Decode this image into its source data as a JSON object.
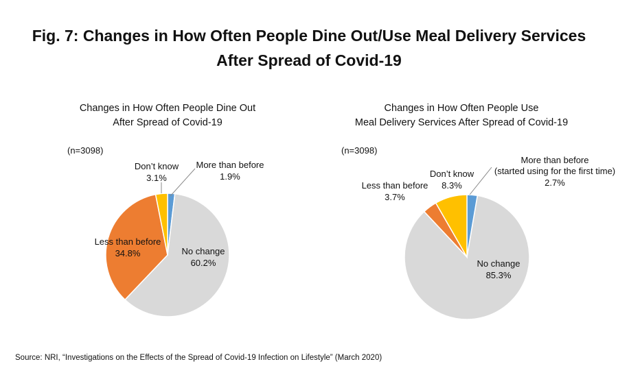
{
  "figure": {
    "title_line1": "Fig. 7: Changes in How Often People Dine Out/Use Meal Delivery Services",
    "title_line2": "After Spread of Covid-19",
    "source": "Source: NRI, “Investigations on the Effects of the Spread of Covid-19 Infection on Lifestyle” (March 2020)"
  },
  "chart_data": [
    {
      "type": "pie",
      "title_line1": "Changes in How Often People Dine Out",
      "title_line2": "After Spread of Covid-19",
      "n_label": "(n=3098)",
      "slices": [
        {
          "label": "More than before",
          "label_line2": "",
          "value": 1.9,
          "value_label": "1.9%",
          "color": "#5B9BD5"
        },
        {
          "label": "No change",
          "label_line2": "",
          "value": 60.2,
          "value_label": "60.2%",
          "color": "#D9D9D9"
        },
        {
          "label": "Less than before",
          "label_line2": "",
          "value": 34.8,
          "value_label": "34.8%",
          "color": "#ED7D31"
        },
        {
          "label": "Don’t know",
          "label_line2": "",
          "value": 3.1,
          "value_label": "3.1%",
          "color": "#FFC000"
        }
      ]
    },
    {
      "type": "pie",
      "title_line1": "Changes in How Often People Use",
      "title_line2": "Meal Delivery Services After Spread of Covid-19",
      "n_label": "(n=3098)",
      "slices": [
        {
          "label": "More than before",
          "label_line2": "(started using for the first time)",
          "value": 2.7,
          "value_label": "2.7%",
          "color": "#5B9BD5"
        },
        {
          "label": "No change",
          "label_line2": "",
          "value": 85.3,
          "value_label": "85.3%",
          "color": "#D9D9D9"
        },
        {
          "label": "Less than before",
          "label_line2": "",
          "value": 3.7,
          "value_label": "3.7%",
          "color": "#ED7D31"
        },
        {
          "label": "Don’t know",
          "label_line2": "",
          "value": 8.3,
          "value_label": "8.3%",
          "color": "#FFC000"
        }
      ]
    }
  ]
}
